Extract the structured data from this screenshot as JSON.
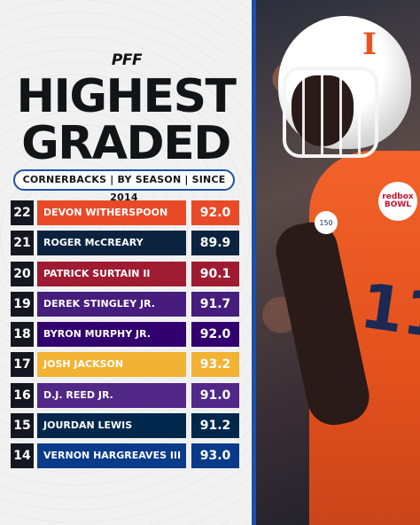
{
  "brand": {
    "logo": "PFF"
  },
  "title": {
    "line1": "HIGHEST",
    "line2": "GRADED"
  },
  "subtitle": "CORNERBACKS | BY SEASON | SINCE 2014",
  "colors": {
    "accent_blue": "#1e4fa8",
    "rank_bg": "#141720"
  },
  "rows": [
    {
      "season": "22",
      "player": "DEVON WITHERSPOON",
      "grade": "92.0",
      "team_color": "#e84a27",
      "grade_color": "#e84a27"
    },
    {
      "season": "21",
      "player": "ROGER McCREARY",
      "grade": "89.9",
      "team_color": "#0c2340",
      "grade_color": "#0c2340"
    },
    {
      "season": "20",
      "player": "PATRICK SURTAIN II",
      "grade": "90.1",
      "team_color": "#9e1b32",
      "grade_color": "#9e1b32"
    },
    {
      "season": "19",
      "player": "DEREK STINGLEY JR.",
      "grade": "91.7",
      "team_color": "#461d7c",
      "grade_color": "#461d7c"
    },
    {
      "season": "18",
      "player": "BYRON MURPHY JR.",
      "grade": "92.0",
      "team_color": "#32006e",
      "grade_color": "#32006e"
    },
    {
      "season": "17",
      "player": "JOSH JACKSON",
      "grade": "93.2",
      "team_color": "#f2b233",
      "grade_color": "#f2b233"
    },
    {
      "season": "16",
      "player": "D.J. REED JR.",
      "grade": "91.0",
      "team_color": "#512888",
      "grade_color": "#512888"
    },
    {
      "season": "15",
      "player": "JOURDAN LEWIS",
      "grade": "91.2",
      "team_color": "#00274c",
      "grade_color": "#00274c"
    },
    {
      "season": "14",
      "player": "VERNON HARGREAVES III",
      "grade": "93.0",
      "team_color": "#0a3a8a",
      "grade_color": "#0a3a8a"
    }
  ],
  "photo": {
    "helmet_logo": "I",
    "jersey_number": "11",
    "bowl_patch": "redbox BOWL",
    "anniversary_patch": "150"
  }
}
